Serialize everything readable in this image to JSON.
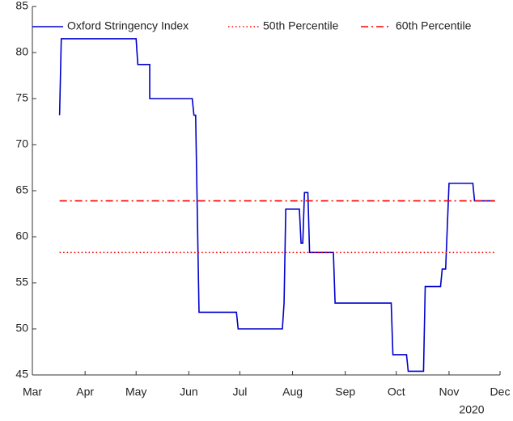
{
  "chart_data": {
    "type": "line",
    "x_sublabel": "2020",
    "xlim": [
      0,
      275
    ],
    "xticks": [
      {
        "value": 0,
        "label": "Mar"
      },
      {
        "value": 31,
        "label": "Apr"
      },
      {
        "value": 61,
        "label": "May"
      },
      {
        "value": 92,
        "label": "Jun"
      },
      {
        "value": 122,
        "label": "Jul"
      },
      {
        "value": 153,
        "label": "Aug"
      },
      {
        "value": 184,
        "label": "Sep"
      },
      {
        "value": 214,
        "label": "Oct"
      },
      {
        "value": 245,
        "label": "Nov"
      },
      {
        "value": 275,
        "label": "Dec"
      }
    ],
    "ylim": [
      45,
      85
    ],
    "yticks": [
      45,
      50,
      55,
      60,
      65,
      70,
      75,
      80,
      85
    ],
    "legend": "top",
    "series": [
      {
        "name": "Oxford Stringency Index",
        "color": "#0000cc",
        "dash": "solid",
        "x": [
          16,
          17,
          61,
          62,
          69,
          69,
          94,
          95,
          96,
          98,
          120,
          121,
          147,
          148,
          149,
          157,
          158,
          159,
          160,
          162,
          163,
          177,
          178,
          211,
          212,
          220,
          221,
          230,
          231,
          240,
          241,
          243,
          245,
          259,
          260,
          272
        ],
        "values": [
          73.2,
          81.5,
          81.5,
          78.7,
          78.7,
          75,
          75,
          73.2,
          73.2,
          51.8,
          51.8,
          50,
          50,
          52.8,
          63,
          63,
          59.3,
          59.3,
          64.8,
          64.8,
          58.3,
          58.3,
          52.8,
          52.8,
          47.2,
          47.2,
          45.4,
          45.4,
          54.6,
          54.6,
          56.5,
          56.5,
          65.8,
          65.8,
          63.9,
          63.9
        ]
      },
      {
        "name": "50th Percentile",
        "color": "#ff0000",
        "dash": "dotted",
        "x": [
          16,
          272
        ],
        "values": [
          58.3,
          58.3
        ]
      },
      {
        "name": "60th Percentile",
        "color": "#ff0000",
        "dash": "dashdot",
        "x": [
          16,
          272
        ],
        "values": [
          63.9,
          63.9
        ]
      }
    ]
  }
}
